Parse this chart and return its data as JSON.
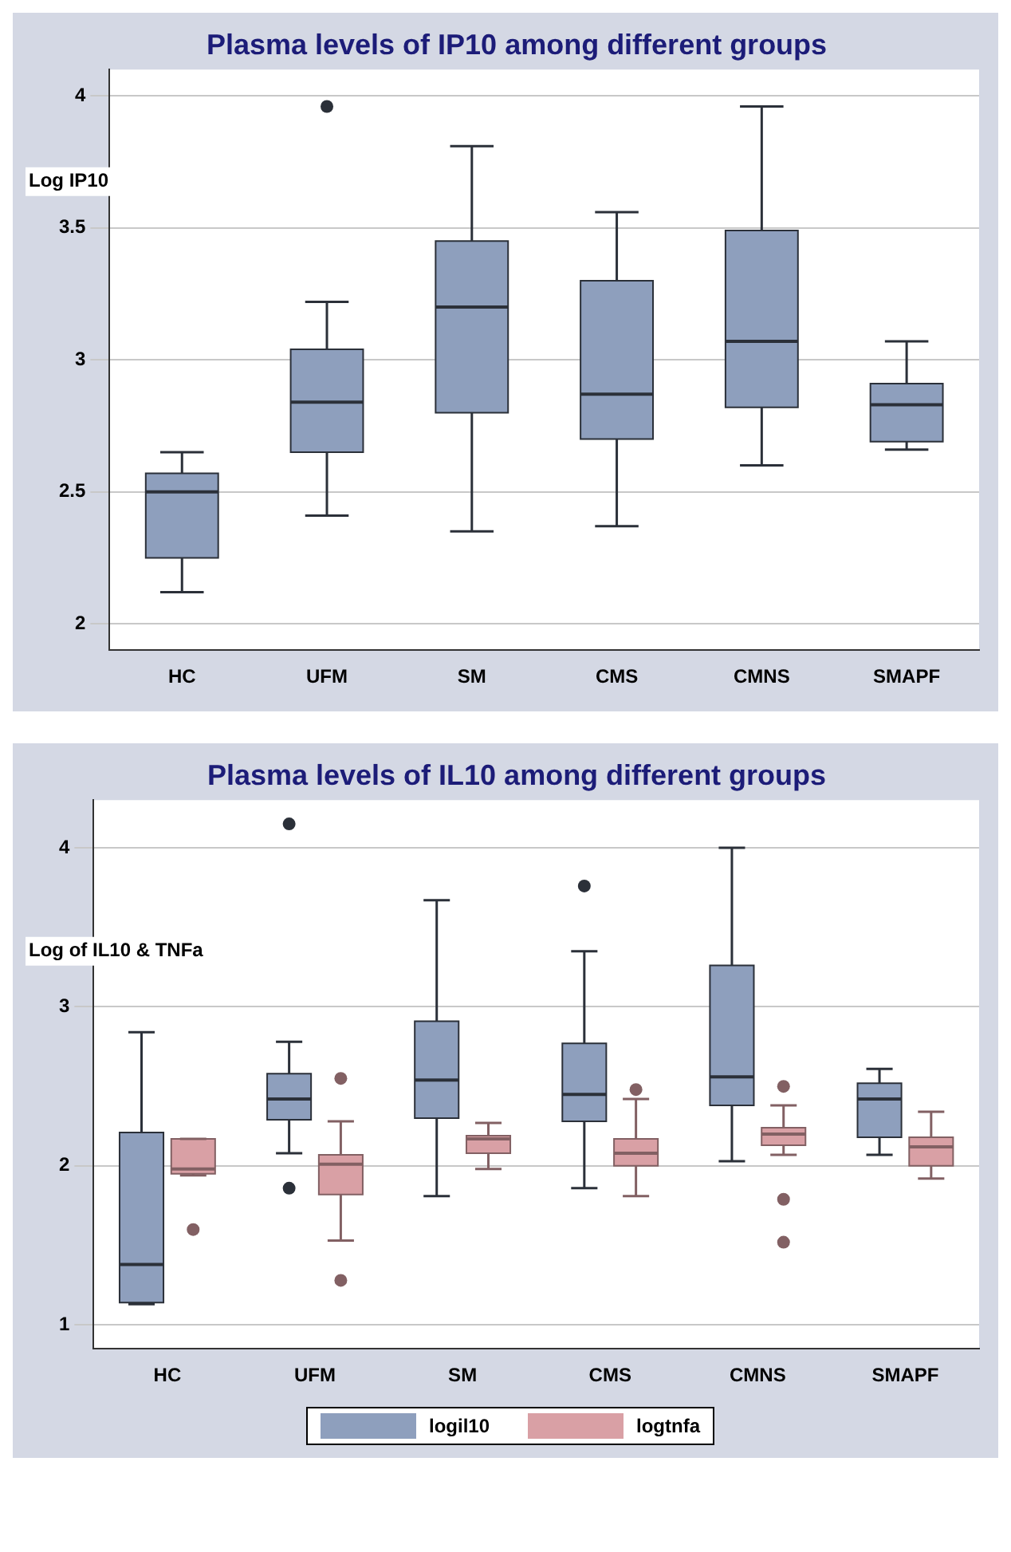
{
  "chart_data": [
    {
      "type": "box",
      "title": "Plasma levels of IP10 among different groups",
      "ylabel": "Log IP10",
      "categories": [
        "HC",
        "UFM",
        "SM",
        "CMS",
        "CMNS",
        "SMAPF"
      ],
      "series": [
        {
          "color": "#8e9fbd",
          "boxes": [
            {
              "low": 2.12,
              "q1": 2.25,
              "median": 2.5,
              "q3": 2.57,
              "high": 2.65
            },
            {
              "low": 2.41,
              "q1": 2.65,
              "median": 2.84,
              "q3": 3.04,
              "high": 3.22,
              "outliers": [
                3.96
              ]
            },
            {
              "low": 2.35,
              "q1": 2.8,
              "median": 3.2,
              "q3": 3.45,
              "high": 3.81
            },
            {
              "low": 2.37,
              "q1": 2.7,
              "median": 2.87,
              "q3": 3.3,
              "high": 3.56
            },
            {
              "low": 2.6,
              "q1": 2.82,
              "median": 3.07,
              "q3": 3.49,
              "high": 3.96
            },
            {
              "low": 2.66,
              "q1": 2.69,
              "median": 2.83,
              "q3": 2.91,
              "high": 3.07
            }
          ]
        }
      ],
      "ylim": [
        1.9,
        4.1
      ],
      "yticks": [
        2,
        2.5,
        3,
        3.5,
        4
      ],
      "grid": "y",
      "legend": false
    },
    {
      "type": "box",
      "title": "Plasma levels of IL10 among different groups",
      "ylabel": "Log of IL10 & TNFa",
      "categories": [
        "HC",
        "UFM",
        "SM",
        "CMS",
        "CMNS",
        "SMAPF"
      ],
      "series": [
        {
          "name": "logil10",
          "color": "#8e9fbd",
          "boxes": [
            {
              "low": 1.13,
              "q1": 1.14,
              "median": 1.38,
              "q3": 2.21,
              "high": 2.84
            },
            {
              "low": 2.08,
              "q1": 2.29,
              "median": 2.42,
              "q3": 2.58,
              "high": 2.78,
              "outliers": [
                4.15,
                1.86
              ]
            },
            {
              "low": 1.81,
              "q1": 2.3,
              "median": 2.54,
              "q3": 2.91,
              "high": 3.67
            },
            {
              "low": 1.86,
              "q1": 2.28,
              "median": 2.45,
              "q3": 2.77,
              "high": 3.35,
              "outliers": [
                3.76
              ]
            },
            {
              "low": 2.03,
              "q1": 2.38,
              "median": 2.56,
              "q3": 3.26,
              "high": 4.0
            },
            {
              "low": 2.07,
              "q1": 2.18,
              "median": 2.42,
              "q3": 2.52,
              "high": 2.61
            }
          ]
        },
        {
          "name": "logtnfa",
          "color": "#d9a0a5",
          "boxes": [
            {
              "low": 1.94,
              "q1": 1.95,
              "median": 1.98,
              "q3": 2.17,
              "high": 2.17,
              "outliers": [
                1.6
              ]
            },
            {
              "low": 1.53,
              "q1": 1.82,
              "median": 2.01,
              "q3": 2.07,
              "high": 2.28,
              "outliers": [
                2.55,
                1.28
              ]
            },
            {
              "low": 1.98,
              "q1": 2.08,
              "median": 2.17,
              "q3": 2.19,
              "high": 2.27
            },
            {
              "low": 1.81,
              "q1": 2.0,
              "median": 2.08,
              "q3": 2.17,
              "high": 2.42,
              "outliers": [
                2.48
              ]
            },
            {
              "low": 2.07,
              "q1": 2.13,
              "median": 2.2,
              "q3": 2.24,
              "high": 2.38,
              "outliers": [
                2.5,
                1.79,
                1.52
              ]
            },
            {
              "low": 1.92,
              "q1": 2.0,
              "median": 2.12,
              "q3": 2.18,
              "high": 2.34
            }
          ]
        }
      ],
      "ylim": [
        0.85,
        4.3
      ],
      "yticks": [
        1,
        2,
        3,
        4
      ],
      "grid": "y",
      "legend": "bottom"
    }
  ]
}
